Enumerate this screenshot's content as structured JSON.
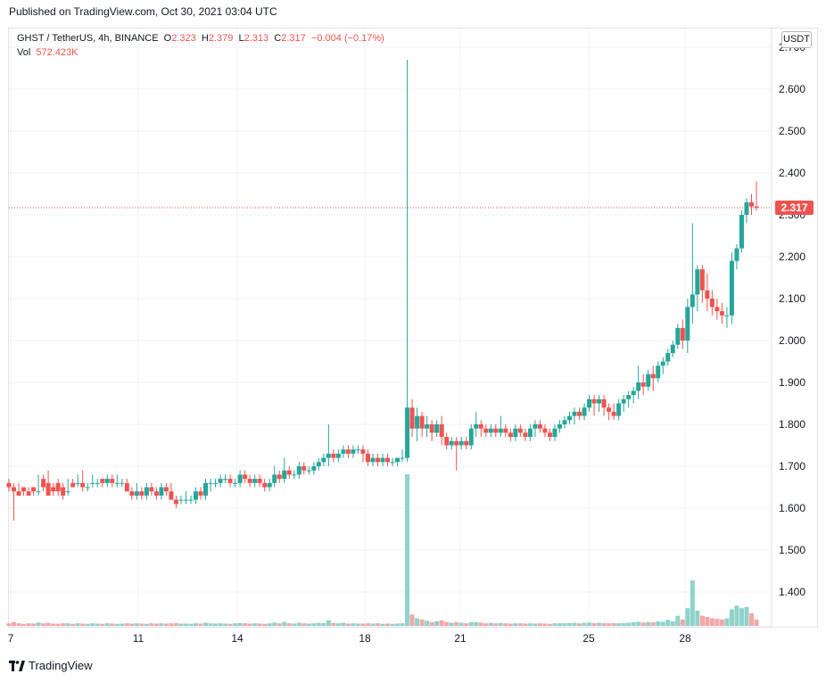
{
  "header": {
    "published": "Published on TradingView.com, Oct 30, 2021 03:04 UTC"
  },
  "legend": {
    "symbol": "GHST / TetherUS, 4h, BINANCE",
    "open_label": "O",
    "open": "2.323",
    "high_label": "H",
    "high": "2.379",
    "low_label": "L",
    "low": "2.313",
    "close_label": "C",
    "close": "2.317",
    "change": "−0.004 (−0.17%)",
    "vol_label": "Vol",
    "vol": "572.423K"
  },
  "currency": "USDT",
  "last_price": "2.317",
  "footer": {
    "brand": "TradingView"
  },
  "colors": {
    "up": "#26a69a",
    "down": "#ef5350",
    "up_vol": "#8fd3cb",
    "down_vol": "#f5a8a6",
    "grid": "#f0f3fa"
  },
  "chart_data": {
    "type": "candlestick",
    "y_ticks": [
      "1.400",
      "1.500",
      "1.600",
      "1.700",
      "1.800",
      "1.900",
      "2.000",
      "2.100",
      "2.200",
      "2.300",
      "2.400",
      "2.500",
      "2.600",
      "2.700"
    ],
    "x_ticks": [
      "7",
      "11",
      "14",
      "18",
      "21",
      "25",
      "28"
    ],
    "ylim": [
      1.32,
      2.7
    ],
    "candles": [
      [
        1.66,
        1.67,
        1.65,
        1.64
      ],
      [
        1.65,
        1.66,
        1.64,
        1.57
      ],
      [
        1.64,
        1.66,
        1.63,
        1.63
      ],
      [
        1.65,
        1.65,
        1.64,
        1.63
      ],
      [
        1.64,
        1.65,
        1.63,
        1.63
      ],
      [
        1.65,
        1.65,
        1.64,
        1.63
      ],
      [
        1.64,
        1.68,
        1.64,
        1.63
      ],
      [
        1.67,
        1.68,
        1.65,
        1.64
      ],
      [
        1.66,
        1.69,
        1.63,
        1.63
      ],
      [
        1.65,
        1.66,
        1.64,
        1.63
      ],
      [
        1.66,
        1.67,
        1.64,
        1.63
      ],
      [
        1.65,
        1.66,
        1.63,
        1.62
      ],
      [
        1.64,
        1.67,
        1.64,
        1.63
      ],
      [
        1.66,
        1.67,
        1.65,
        1.65
      ],
      [
        1.66,
        1.68,
        1.66,
        1.65
      ],
      [
        1.66,
        1.69,
        1.65,
        1.64
      ],
      [
        1.65,
        1.66,
        1.65,
        1.64
      ],
      [
        1.66,
        1.68,
        1.66,
        1.65
      ],
      [
        1.66,
        1.67,
        1.66,
        1.65
      ],
      [
        1.67,
        1.67,
        1.66,
        1.65
      ],
      [
        1.66,
        1.68,
        1.67,
        1.65
      ],
      [
        1.67,
        1.68,
        1.66,
        1.65
      ],
      [
        1.66,
        1.68,
        1.66,
        1.65
      ],
      [
        1.66,
        1.67,
        1.66,
        1.65
      ],
      [
        1.66,
        1.67,
        1.64,
        1.64
      ],
      [
        1.64,
        1.65,
        1.63,
        1.62
      ],
      [
        1.63,
        1.66,
        1.64,
        1.62
      ],
      [
        1.64,
        1.65,
        1.63,
        1.62
      ],
      [
        1.63,
        1.66,
        1.65,
        1.62
      ],
      [
        1.65,
        1.66,
        1.64,
        1.63
      ],
      [
        1.64,
        1.65,
        1.63,
        1.62
      ],
      [
        1.63,
        1.66,
        1.65,
        1.62
      ],
      [
        1.65,
        1.66,
        1.64,
        1.63
      ],
      [
        1.64,
        1.66,
        1.62,
        1.62
      ],
      [
        1.62,
        1.63,
        1.61,
        1.6
      ],
      [
        1.62,
        1.63,
        1.62,
        1.61
      ],
      [
        1.62,
        1.64,
        1.62,
        1.61
      ],
      [
        1.62,
        1.63,
        1.62,
        1.61
      ],
      [
        1.62,
        1.65,
        1.64,
        1.61
      ],
      [
        1.64,
        1.65,
        1.63,
        1.62
      ],
      [
        1.63,
        1.67,
        1.66,
        1.62
      ],
      [
        1.66,
        1.67,
        1.66,
        1.64
      ],
      [
        1.66,
        1.67,
        1.66,
        1.65
      ],
      [
        1.66,
        1.68,
        1.67,
        1.65
      ],
      [
        1.67,
        1.68,
        1.67,
        1.66
      ],
      [
        1.67,
        1.68,
        1.66,
        1.65
      ],
      [
        1.66,
        1.67,
        1.66,
        1.65
      ],
      [
        1.66,
        1.69,
        1.68,
        1.65
      ],
      [
        1.68,
        1.69,
        1.67,
        1.66
      ],
      [
        1.67,
        1.68,
        1.66,
        1.65
      ],
      [
        1.66,
        1.68,
        1.67,
        1.65
      ],
      [
        1.67,
        1.68,
        1.66,
        1.65
      ],
      [
        1.66,
        1.67,
        1.65,
        1.64
      ],
      [
        1.65,
        1.67,
        1.66,
        1.64
      ],
      [
        1.66,
        1.7,
        1.68,
        1.65
      ],
      [
        1.68,
        1.69,
        1.67,
        1.66
      ],
      [
        1.67,
        1.72,
        1.69,
        1.66
      ],
      [
        1.69,
        1.7,
        1.68,
        1.67
      ],
      [
        1.68,
        1.69,
        1.68,
        1.67
      ],
      [
        1.68,
        1.71,
        1.7,
        1.67
      ],
      [
        1.7,
        1.71,
        1.69,
        1.68
      ],
      [
        1.69,
        1.7,
        1.69,
        1.68
      ],
      [
        1.69,
        1.71,
        1.7,
        1.68
      ],
      [
        1.7,
        1.72,
        1.71,
        1.69
      ],
      [
        1.71,
        1.73,
        1.72,
        1.7
      ],
      [
        1.72,
        1.8,
        1.73,
        1.7
      ],
      [
        1.73,
        1.74,
        1.72,
        1.71
      ],
      [
        1.72,
        1.74,
        1.73,
        1.71
      ],
      [
        1.73,
        1.75,
        1.74,
        1.72
      ],
      [
        1.74,
        1.75,
        1.73,
        1.72
      ],
      [
        1.73,
        1.75,
        1.74,
        1.72
      ],
      [
        1.74,
        1.75,
        1.74,
        1.73
      ],
      [
        1.74,
        1.75,
        1.73,
        1.71
      ],
      [
        1.73,
        1.74,
        1.71,
        1.7
      ],
      [
        1.71,
        1.73,
        1.72,
        1.7
      ],
      [
        1.72,
        1.73,
        1.71,
        1.7
      ],
      [
        1.71,
        1.73,
        1.72,
        1.7
      ],
      [
        1.72,
        1.73,
        1.71,
        1.7
      ],
      [
        1.71,
        1.72,
        1.71,
        1.7
      ],
      [
        1.71,
        1.72,
        1.72,
        1.7
      ],
      [
        1.72,
        1.74,
        1.72,
        1.71
      ],
      [
        1.72,
        2.67,
        1.84,
        1.71
      ],
      [
        1.84,
        1.86,
        1.79,
        1.77
      ],
      [
        1.79,
        1.84,
        1.82,
        1.76
      ],
      [
        1.82,
        1.83,
        1.79,
        1.77
      ],
      [
        1.79,
        1.82,
        1.8,
        1.77
      ],
      [
        1.8,
        1.81,
        1.78,
        1.76
      ],
      [
        1.78,
        1.81,
        1.8,
        1.77
      ],
      [
        1.8,
        1.82,
        1.77,
        1.75
      ],
      [
        1.77,
        1.78,
        1.75,
        1.74
      ],
      [
        1.75,
        1.77,
        1.76,
        1.74
      ],
      [
        1.76,
        1.77,
        1.75,
        1.69
      ],
      [
        1.75,
        1.77,
        1.76,
        1.74
      ],
      [
        1.76,
        1.77,
        1.75,
        1.74
      ],
      [
        1.75,
        1.8,
        1.79,
        1.74
      ],
      [
        1.79,
        1.83,
        1.8,
        1.77
      ],
      [
        1.8,
        1.81,
        1.79,
        1.77
      ],
      [
        1.79,
        1.8,
        1.78,
        1.77
      ],
      [
        1.78,
        1.8,
        1.79,
        1.77
      ],
      [
        1.79,
        1.8,
        1.78,
        1.77
      ],
      [
        1.78,
        1.82,
        1.79,
        1.77
      ],
      [
        1.79,
        1.8,
        1.78,
        1.77
      ],
      [
        1.78,
        1.79,
        1.77,
        1.76
      ],
      [
        1.77,
        1.8,
        1.79,
        1.76
      ],
      [
        1.79,
        1.8,
        1.78,
        1.77
      ],
      [
        1.78,
        1.79,
        1.77,
        1.76
      ],
      [
        1.77,
        1.8,
        1.79,
        1.76
      ],
      [
        1.79,
        1.81,
        1.8,
        1.77
      ],
      [
        1.8,
        1.81,
        1.79,
        1.78
      ],
      [
        1.79,
        1.8,
        1.78,
        1.77
      ],
      [
        1.78,
        1.79,
        1.77,
        1.76
      ],
      [
        1.77,
        1.8,
        1.79,
        1.76
      ],
      [
        1.79,
        1.81,
        1.8,
        1.78
      ],
      [
        1.8,
        1.82,
        1.81,
        1.79
      ],
      [
        1.81,
        1.83,
        1.82,
        1.8
      ],
      [
        1.82,
        1.84,
        1.83,
        1.8
      ],
      [
        1.83,
        1.84,
        1.82,
        1.81
      ],
      [
        1.82,
        1.85,
        1.84,
        1.81
      ],
      [
        1.84,
        1.87,
        1.86,
        1.83
      ],
      [
        1.86,
        1.87,
        1.85,
        1.82
      ],
      [
        1.85,
        1.87,
        1.86,
        1.83
      ],
      [
        1.86,
        1.87,
        1.84,
        1.82
      ],
      [
        1.84,
        1.85,
        1.83,
        1.81
      ],
      [
        1.83,
        1.85,
        1.82,
        1.81
      ],
      [
        1.82,
        1.86,
        1.85,
        1.81
      ],
      [
        1.85,
        1.87,
        1.86,
        1.83
      ],
      [
        1.86,
        1.88,
        1.87,
        1.84
      ],
      [
        1.87,
        1.89,
        1.88,
        1.85
      ],
      [
        1.88,
        1.94,
        1.9,
        1.86
      ],
      [
        1.9,
        1.92,
        1.89,
        1.87
      ],
      [
        1.89,
        1.93,
        1.92,
        1.88
      ],
      [
        1.92,
        1.94,
        1.91,
        1.88
      ],
      [
        1.91,
        1.95,
        1.94,
        1.9
      ],
      [
        1.94,
        1.96,
        1.95,
        1.92
      ],
      [
        1.95,
        1.98,
        1.97,
        1.94
      ],
      [
        1.97,
        2.0,
        1.99,
        1.96
      ],
      [
        1.99,
        2.04,
        2.03,
        1.98
      ],
      [
        2.03,
        2.05,
        2.0,
        1.98
      ],
      [
        2.0,
        2.1,
        2.08,
        1.97
      ],
      [
        2.08,
        2.28,
        2.11,
        2.04
      ],
      [
        2.11,
        2.18,
        2.17,
        2.07
      ],
      [
        2.17,
        2.18,
        2.12,
        2.09
      ],
      [
        2.12,
        2.16,
        2.1,
        2.07
      ],
      [
        2.1,
        2.12,
        2.08,
        2.06
      ],
      [
        2.08,
        2.1,
        2.07,
        2.05
      ],
      [
        2.07,
        2.09,
        2.06,
        2.04
      ],
      [
        2.06,
        2.08,
        2.06,
        2.03
      ],
      [
        2.06,
        2.21,
        2.19,
        2.04
      ],
      [
        2.19,
        2.23,
        2.22,
        2.17
      ],
      [
        2.22,
        2.31,
        2.3,
        2.21
      ],
      [
        2.3,
        2.34,
        2.33,
        2.28
      ],
      [
        2.33,
        2.35,
        2.32,
        2.3
      ],
      [
        2.32,
        2.38,
        2.317,
        2.31
      ]
    ],
    "volumes": [
      1.0,
      1.5,
      1.0,
      0.8,
      1.0,
      0.9,
      1.3,
      1.0,
      1.2,
      0.9,
      0.8,
      1.0,
      1.0,
      0.8,
      1.0,
      0.9,
      0.8,
      1.0,
      0.9,
      0.8,
      1.0,
      0.9,
      0.8,
      0.9,
      1.0,
      0.9,
      1.0,
      0.9,
      0.8,
      1.0,
      0.9,
      1.0,
      0.9,
      1.0,
      1.1,
      0.9,
      0.9,
      0.8,
      1.0,
      0.9,
      1.2,
      1.0,
      0.9,
      1.0,
      0.9,
      0.8,
      1.0,
      1.1,
      1.0,
      0.9,
      1.0,
      0.9,
      0.8,
      1.0,
      1.3,
      1.0,
      1.6,
      1.0,
      0.9,
      1.2,
      1.0,
      0.9,
      1.0,
      1.2,
      1.1,
      2.2,
      1.1,
      1.0,
      1.2,
      0.9,
      1.0,
      0.9,
      0.9,
      1.0,
      0.9,
      1.0,
      0.8,
      0.9,
      0.8,
      0.9,
      1.0,
      60.0,
      4.5,
      3.0,
      2.5,
      2.0,
      1.5,
      1.8,
      2.2,
      1.5,
      1.2,
      1.5,
      1.2,
      1.0,
      1.5,
      1.5,
      1.3,
      1.0,
      1.2,
      1.0,
      1.1,
      1.0,
      0.9,
      1.0,
      1.0,
      0.9,
      1.0,
      0.9,
      1.0,
      0.9,
      0.8,
      1.0,
      1.0,
      1.0,
      1.1,
      1.2,
      1.0,
      1.2,
      1.3,
      1.1,
      1.2,
      1.1,
      1.0,
      1.1,
      1.0,
      1.1,
      1.2,
      1.4,
      1.6,
      1.3,
      1.5,
      1.4,
      1.8,
      1.6,
      2.4,
      1.8,
      4.0,
      2.5,
      7.0,
      18.0,
      6.0,
      4.0,
      3.5,
      3.0,
      2.8,
      2.5,
      3.0,
      6.5,
      8.0,
      7.0,
      7.5,
      5.0,
      2.5
    ]
  }
}
